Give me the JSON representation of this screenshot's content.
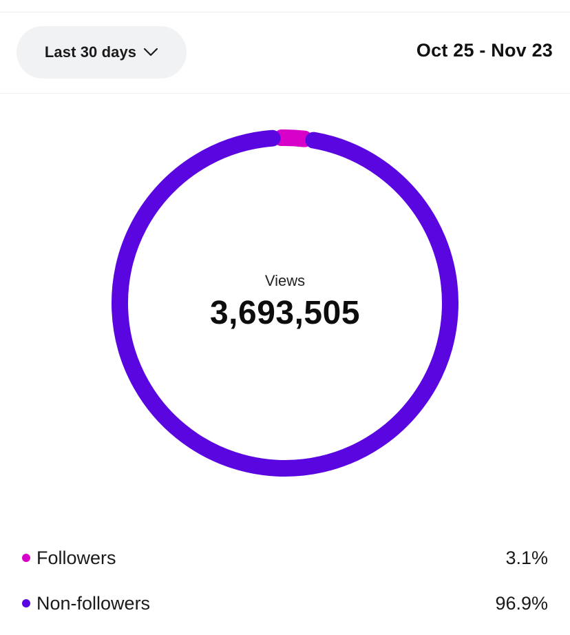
{
  "header": {
    "range_selector": {
      "label": "Last 30 days",
      "icon": "chevron-down-icon"
    },
    "date_range": "Oct 25 - Nov 23"
  },
  "chart_data": {
    "type": "pie",
    "title": "Views",
    "total": "3,693,505",
    "segments": [
      {
        "name": "Followers",
        "percent_label": "3.1%",
        "value": 3.1,
        "color": "#d600c9"
      },
      {
        "name": "Non-followers",
        "percent_label": "96.9%",
        "value": 96.9,
        "color": "#5a06e0"
      }
    ]
  },
  "colors": {
    "followers": "#d600c9",
    "non_followers": "#5a06e0",
    "pill_background": "#f1f2f4"
  }
}
